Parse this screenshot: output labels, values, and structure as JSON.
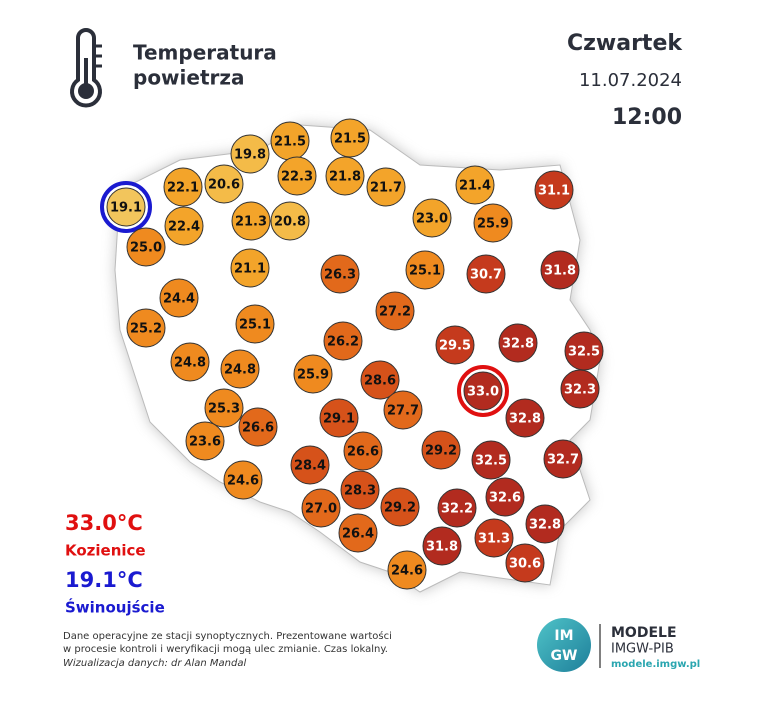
{
  "header": {
    "title_lines": [
      "Temperatura",
      "powietrza"
    ],
    "day": "Czwartek",
    "date": "11.07.2024",
    "time": "12:00"
  },
  "stations": [
    "21.5",
    "21.5",
    "19.8",
    "22.3",
    "21.8",
    "21.7",
    "21.4",
    "31.1",
    "22.1",
    "20.6",
    "19.1",
    "22.4",
    "21.3",
    "20.8",
    "23.0",
    "25.9",
    "25.0",
    "21.1",
    "26.3",
    "25.1",
    "30.7",
    "31.8",
    "24.4",
    "27.2",
    "25.2",
    "25.1",
    "26.2",
    "29.5",
    "32.8",
    "32.5",
    "24.8",
    "24.8",
    "25.9",
    "28.6",
    "33.0",
    "32.3",
    "25.3",
    "29.1",
    "27.7",
    "32.8",
    "26.6",
    "23.6",
    "26.6",
    "29.2",
    "32.5",
    "32.7",
    "28.4",
    "24.6",
    "28.3",
    "32.6",
    "27.0",
    "29.2",
    "32.2",
    "32.8",
    "26.4",
    "31.3",
    "31.8",
    "30.6",
    "24.6"
  ],
  "extremes": {
    "max_value": "33.0°C",
    "max_place": "Kozienice",
    "min_value": "19.1°C",
    "min_place": "Świnoujście"
  },
  "note_lines": [
    "Dane operacyjne ze stacji synoptycznych. Prezentowane wartości",
    "w procesie kontroli i weryfikacji mogą ulec zmianie. Czas lokalny."
  ],
  "credit": "Wizualizacja danych: dr Alan Mandal",
  "logo": {
    "mark_lines": [
      "IM",
      "GW"
    ],
    "title": "MODELE",
    "org": "IMGW-PIB",
    "url": "modele.imgw.pl"
  }
}
